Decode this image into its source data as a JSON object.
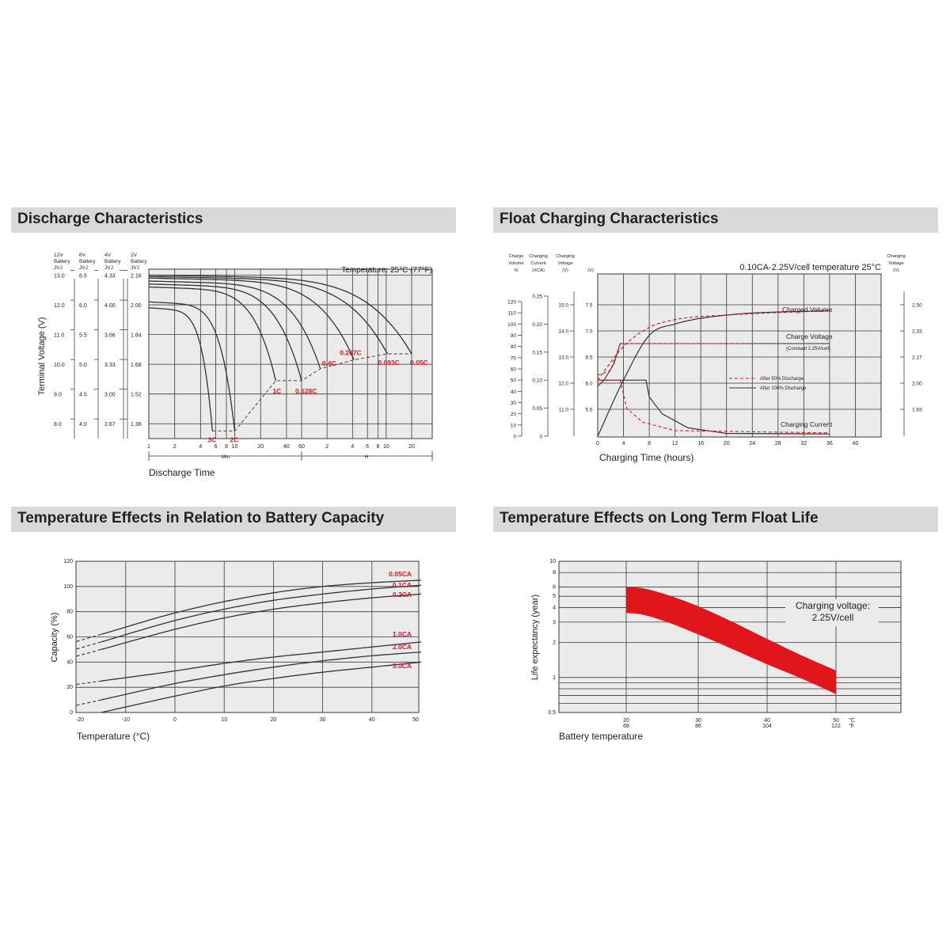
{
  "colors": {
    "accent": "#e0161b",
    "header_bg": "#d9d9d9",
    "plot_bg": "#ebebeb",
    "grid": "#3a3a3a"
  },
  "headers": {
    "discharge": "Discharge Characteristics",
    "float": "Float Charging Characteristics",
    "temp_capacity": "Temperature Effects in Relation to Battery Capacity",
    "float_life": "Temperature Effects on Long Term Float Life"
  },
  "chart_data": [
    {
      "type": "line",
      "id": "discharge",
      "ylabel": "Terminal Voltage (V)",
      "xlabel": "Discharge Time",
      "temperature_note": "Temperature: 25°C (77°F)",
      "axis_columns": [
        {
          "header": [
            "12V",
            "Battery",
            "JVJ"
          ],
          "ticks": [
            "13.0",
            "12.0",
            "11.0",
            "10.0",
            "9.0",
            "8.0"
          ]
        },
        {
          "header": [
            "6V",
            "Battery",
            "JVJ"
          ],
          "ticks": [
            "6.5",
            "6.0",
            "5.5",
            "5.0",
            "4.5",
            "4.0"
          ]
        },
        {
          "header": [
            "4V",
            "Battery",
            "JVJ"
          ],
          "ticks": [
            "4.33",
            "4.00",
            "3.66",
            "3.33",
            "3.00",
            "2.67"
          ]
        },
        {
          "header": [
            "2V",
            "Battery",
            "JVJ"
          ],
          "ticks": [
            "2.16",
            "2.00",
            "1.84",
            "1.68",
            "1.52",
            "1.36"
          ]
        }
      ],
      "x_ticks": [
        "1",
        "2",
        "4",
        "6",
        "8",
        "10",
        "20",
        "40",
        "60",
        "2",
        "4",
        "6",
        "8",
        "10",
        "20"
      ],
      "x_units": {
        "min": "Min",
        "hour": "H"
      },
      "series": [
        {
          "name": "3C",
          "end_minutes": 5.5,
          "start_v": 11.9,
          "end_v": 7.9
        },
        {
          "name": "2C",
          "end_minutes": 10,
          "start_v": 12.1,
          "end_v": 7.9
        },
        {
          "name": "1C",
          "end_minutes": 30,
          "start_v": 12.6,
          "end_v": 9.6
        },
        {
          "name": "0.628C",
          "end_minutes": 60,
          "start_v": 12.7,
          "end_v": 9.6
        },
        {
          "name": "0.4C",
          "end_minutes": 100,
          "start_v": 12.8,
          "end_v": 10.0
        },
        {
          "name": "0.207C",
          "end_minutes": 250,
          "start_v": 12.9,
          "end_v": 10.3
        },
        {
          "name": "0.093C",
          "end_minutes": 620,
          "start_v": 12.95,
          "end_v": 10.5
        },
        {
          "name": "0.05C",
          "end_minutes": 1200,
          "start_v": 13.0,
          "end_v": 10.5
        }
      ],
      "ylim": [
        7.5,
        13.2
      ]
    },
    {
      "type": "line",
      "id": "float",
      "title": "0.10CA-2.25V/cell  temperature 25°C",
      "xlabel": "Charging Time (hours)",
      "x_ticks": [
        "0",
        "4",
        "8",
        "12",
        "16",
        "20",
        "24",
        "28",
        "32",
        "36",
        "40"
      ],
      "axis_columns": [
        {
          "header": [
            "Charge",
            "Volume",
            "%"
          ],
          "ticks": [
            "120",
            "110",
            "100",
            "90",
            "80",
            "70",
            "60",
            "50",
            "40",
            "30",
            "20",
            "10",
            "0"
          ]
        },
        {
          "header": [
            "Charging",
            "Current",
            "(XCA)"
          ],
          "ticks": [
            "0.25",
            "0.20",
            "0.15",
            "0.10",
            "0.05",
            "0"
          ]
        },
        {
          "header": [
            "Charging",
            "Voltage",
            "(V)"
          ],
          "ticks": [
            "15.0",
            "14.0",
            "13.0",
            "12.0",
            "11.0"
          ]
        },
        {
          "header": [
            "(V)"
          ],
          "ticks": [
            "7.5",
            "7.0",
            "6.5",
            "6.0",
            "5.5"
          ]
        }
      ],
      "right_axis": {
        "header": [
          "Charging",
          "Voltage",
          "(V)"
        ],
        "ticks": [
          "2.50",
          "2.33",
          "2.17",
          "2.00",
          "1.83"
        ]
      },
      "curve_labels": {
        "volume": "Charged Volume",
        "voltage": "Charge Voltage",
        "voltage_note": "(Constant 2.25V/cell)",
        "current": "Charging Current"
      },
      "legend": [
        {
          "name": "After  50% Discharge",
          "style": "dashed-red"
        },
        {
          "name": "After 100% Discharge",
          "style": "solid-black"
        }
      ],
      "series": [
        {
          "name": "After 100% Discharge",
          "charged_volume": [
            [
              0,
              0
            ],
            [
              4,
              50
            ],
            [
              8,
              90
            ],
            [
              12,
              100
            ],
            [
              20,
              108
            ],
            [
              36,
              112
            ]
          ]
        },
        {
          "name": "After 50% Discharge",
          "charged_volume": [
            [
              0,
              50
            ],
            [
              4,
              80
            ],
            [
              8,
              97
            ],
            [
              12,
              104
            ],
            [
              20,
              108
            ],
            [
              36,
              112
            ]
          ]
        }
      ]
    },
    {
      "type": "line",
      "id": "temp_capacity",
      "xlabel": "Temperature (°C)",
      "ylabel": "Capacity (%)",
      "xlim": [
        -20,
        50
      ],
      "ylim": [
        0,
        120
      ],
      "x_ticks": [
        "-20",
        "-10",
        "0",
        "10",
        "20",
        "30",
        "40",
        "50"
      ],
      "y_ticks": [
        "120",
        "100",
        "80",
        "60",
        "40",
        "20",
        "0"
      ],
      "series": [
        {
          "name": "0.05CA",
          "x": [
            -15,
            0,
            10,
            20,
            30,
            40,
            50
          ],
          "values": [
            62,
            79,
            88,
            95,
            100,
            103,
            105
          ]
        },
        {
          "name": "0.1CA",
          "x": [
            -15,
            0,
            10,
            20,
            30,
            40,
            50
          ],
          "values": [
            56,
            73,
            82,
            89,
            94,
            98,
            101
          ]
        },
        {
          "name": "0.2CA",
          "x": [
            -15,
            0,
            10,
            20,
            30,
            40,
            50
          ],
          "values": [
            50,
            66,
            75,
            82,
            87,
            91,
            94
          ]
        },
        {
          "name": "1.0CA",
          "x": [
            -15,
            0,
            10,
            20,
            30,
            40,
            50
          ],
          "values": [
            25,
            33,
            39,
            44,
            48,
            52,
            56
          ]
        },
        {
          "name": "2.0CA",
          "x": [
            -15,
            0,
            10,
            20,
            30,
            40,
            50
          ],
          "values": [
            10,
            23,
            30,
            36,
            41,
            45,
            48
          ]
        },
        {
          "name": "3.0CA",
          "x": [
            -15,
            0,
            10,
            20,
            30,
            40,
            50
          ],
          "values": [
            0,
            13,
            21,
            27,
            32,
            36,
            40
          ]
        }
      ]
    },
    {
      "type": "area",
      "id": "float_life",
      "ylabel": "Life expectancy (year)",
      "xlabel": "Battery temperature",
      "note_line1": "Charging voltage:",
      "note_line2": "2.25V/cell",
      "x_ticks": [
        {
          "c": "20",
          "f": "68"
        },
        {
          "c": "30",
          "f": "86"
        },
        {
          "c": "40",
          "f": "104"
        },
        {
          "c": "50",
          "f": "122"
        }
      ],
      "x_units": {
        "c": "°C",
        "f": "°F"
      },
      "y_ticks": [
        "10",
        "8",
        "6",
        "5",
        "4",
        "3",
        "2",
        "1",
        "0.5"
      ],
      "band": {
        "x": [
          20,
          22,
          25,
          30,
          35,
          40,
          45,
          50
        ],
        "upper": [
          6.0,
          5.9,
          5.3,
          4.1,
          3.0,
          2.15,
          1.55,
          1.15
        ],
        "lower": [
          3.6,
          3.5,
          3.1,
          2.35,
          1.75,
          1.3,
          0.98,
          0.72
        ]
      }
    }
  ]
}
